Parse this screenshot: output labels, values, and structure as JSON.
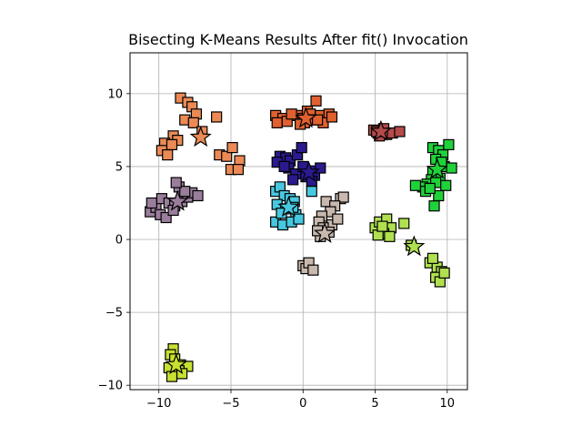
{
  "chart_data": {
    "type": "scatter",
    "title": "Bisecting K-Means Results After fit() Invocation",
    "xlabel": "",
    "ylabel": "",
    "xlim": [
      -12.0,
      11.4
    ],
    "ylim": [
      -10.3,
      12.8
    ],
    "xticks": [
      -10,
      -5,
      0,
      5,
      10
    ],
    "yticks": [
      -10,
      -5,
      0,
      5,
      10
    ],
    "xtick_labels": [
      "−10",
      "−5",
      "0",
      "5",
      "10"
    ],
    "ytick_labels": [
      "−10",
      "−5",
      "0",
      "5",
      "10"
    ],
    "grid": true,
    "legend": false,
    "marker": "square",
    "center_marker": "star",
    "clusters": [
      {
        "color": "#eb8a55",
        "center": [
          -7.1,
          7.0
        ],
        "points": [
          [
            -8.5,
            9.7
          ],
          [
            -8.0,
            9.4
          ],
          [
            -7.7,
            9.1
          ],
          [
            -7.4,
            8.6
          ],
          [
            -8.2,
            8.2
          ],
          [
            -7.6,
            8.0
          ],
          [
            -6.0,
            8.4
          ],
          [
            -9.0,
            7.1
          ],
          [
            -8.7,
            6.8
          ],
          [
            -9.6,
            6.6
          ],
          [
            -9.1,
            6.5
          ],
          [
            -9.8,
            6.1
          ],
          [
            -9.4,
            5.8
          ],
          [
            -5.8,
            5.8
          ],
          [
            -5.3,
            5.7
          ],
          [
            -4.9,
            6.3
          ],
          [
            -4.4,
            5.4
          ],
          [
            -5.0,
            4.8
          ],
          [
            -4.5,
            4.8
          ],
          [
            -7.0,
            7.4
          ]
        ]
      },
      {
        "color": "#e06030",
        "center": [
          0.2,
          8.3
        ],
        "points": [
          [
            -1.9,
            8.5
          ],
          [
            -1.4,
            8.3
          ],
          [
            -1.8,
            8.0
          ],
          [
            -1.1,
            8.1
          ],
          [
            -0.4,
            8.5
          ],
          [
            0.0,
            8.3
          ],
          [
            0.3,
            8.8
          ],
          [
            0.5,
            8.6
          ],
          [
            0.9,
            9.5
          ],
          [
            0.7,
            8.2
          ],
          [
            1.2,
            8.5
          ],
          [
            1.8,
            8.6
          ],
          [
            1.4,
            8.0
          ],
          [
            2.0,
            8.4
          ],
          [
            -0.8,
            8.6
          ],
          [
            0.1,
            8.0
          ],
          [
            1.0,
            8.2
          ],
          [
            -0.2,
            7.9
          ]
        ]
      },
      {
        "color": "#b44a4a",
        "center": [
          5.4,
          7.4
        ],
        "points": [
          [
            4.9,
            7.5
          ],
          [
            5.2,
            7.3
          ],
          [
            5.6,
            7.6
          ],
          [
            5.8,
            7.2
          ],
          [
            6.2,
            7.3
          ],
          [
            6.7,
            7.4
          ],
          [
            5.3,
            7.1
          ],
          [
            5.1,
            7.4
          ]
        ]
      },
      {
        "color": "#1fd23a",
        "center": [
          9.3,
          4.8
        ],
        "points": [
          [
            9.0,
            6.3
          ],
          [
            9.4,
            6.1
          ],
          [
            9.7,
            5.8
          ],
          [
            10.1,
            6.5
          ],
          [
            9.2,
            5.5
          ],
          [
            9.8,
            5.0
          ],
          [
            10.3,
            4.9
          ],
          [
            9.0,
            4.6
          ],
          [
            9.5,
            4.2
          ],
          [
            8.9,
            4.1
          ],
          [
            8.6,
            3.8
          ],
          [
            8.3,
            3.6
          ],
          [
            7.8,
            3.7
          ],
          [
            8.5,
            3.3
          ],
          [
            9.2,
            3.9
          ],
          [
            9.9,
            3.7
          ],
          [
            9.4,
            3.0
          ],
          [
            9.1,
            2.3
          ],
          [
            8.8,
            3.5
          ],
          [
            9.6,
            5.3
          ]
        ]
      },
      {
        "color": "#2a1a8e",
        "center": [
          0.4,
          4.6
        ],
        "points": [
          [
            -1.6,
            5.7
          ],
          [
            -1.2,
            5.6
          ],
          [
            -0.9,
            5.4
          ],
          [
            -0.4,
            5.8
          ],
          [
            -0.1,
            6.3
          ],
          [
            -1.8,
            5.3
          ],
          [
            -1.0,
            4.9
          ],
          [
            -0.5,
            4.5
          ],
          [
            0.2,
            4.3
          ],
          [
            0.5,
            4.7
          ],
          [
            0.8,
            4.4
          ],
          [
            1.2,
            4.9
          ],
          [
            0.6,
            4.0
          ],
          [
            -0.7,
            4.1
          ],
          [
            -1.3,
            5.0
          ],
          [
            0.0,
            5.0
          ]
        ]
      },
      {
        "color": "#9a7d9b",
        "center": [
          -8.7,
          2.6
        ],
        "points": [
          [
            -10.6,
            1.9
          ],
          [
            -10.2,
            2.2
          ],
          [
            -9.9,
            1.7
          ],
          [
            -9.5,
            1.5
          ],
          [
            -9.8,
            2.8
          ],
          [
            -9.3,
            2.5
          ],
          [
            -8.9,
            2.3
          ],
          [
            -8.4,
            2.6
          ],
          [
            -8.0,
            2.9
          ],
          [
            -7.7,
            3.2
          ],
          [
            -7.3,
            3.0
          ],
          [
            -8.6,
            3.6
          ],
          [
            -8.2,
            3.3
          ],
          [
            -8.8,
            3.9
          ],
          [
            -9.0,
            2.0
          ],
          [
            -10.5,
            2.5
          ]
        ]
      },
      {
        "color": "#48c8e0",
        "center": [
          -1.0,
          2.2
        ],
        "points": [
          [
            -1.9,
            3.3
          ],
          [
            -1.6,
            3.6
          ],
          [
            -1.3,
            3.0
          ],
          [
            -0.9,
            2.8
          ],
          [
            -0.6,
            2.6
          ],
          [
            -1.8,
            2.4
          ],
          [
            -1.2,
            2.1
          ],
          [
            -0.5,
            1.7
          ],
          [
            -1.9,
            1.2
          ],
          [
            -1.4,
            1.0
          ],
          [
            -0.8,
            1.2
          ],
          [
            -0.3,
            1.4
          ],
          [
            0.6,
            3.3
          ],
          [
            -1.5,
            1.8
          ],
          [
            -0.7,
            2.2
          ]
        ]
      },
      {
        "color": "#c8b8ae",
        "center": [
          1.5,
          0.4
        ],
        "points": [
          [
            2.6,
            2.8
          ],
          [
            2.8,
            2.9
          ],
          [
            1.6,
            2.6
          ],
          [
            2.2,
            2.3
          ],
          [
            1.9,
            1.9
          ],
          [
            1.3,
            1.6
          ],
          [
            1.1,
            1.2
          ],
          [
            2.0,
            1.0
          ],
          [
            1.4,
            0.8
          ],
          [
            1.8,
            0.5
          ],
          [
            1.2,
            0.2
          ],
          [
            1.0,
            0.6
          ],
          [
            0.0,
            -1.8
          ],
          [
            0.2,
            -2.0
          ],
          [
            0.4,
            -1.6
          ],
          [
            0.7,
            -2.1
          ],
          [
            2.4,
            1.4
          ]
        ]
      },
      {
        "color": "#b0e050",
        "center": [
          7.7,
          -0.5
        ],
        "points": [
          [
            5.0,
            0.8
          ],
          [
            5.3,
            1.2
          ],
          [
            5.8,
            1.4
          ],
          [
            6.1,
            0.8
          ],
          [
            5.6,
            0.4
          ],
          [
            6.0,
            0.2
          ],
          [
            5.2,
            0.3
          ],
          [
            5.5,
            0.9
          ],
          [
            7.0,
            1.1
          ],
          [
            8.8,
            -1.6
          ],
          [
            9.3,
            -1.9
          ],
          [
            9.6,
            -2.2
          ],
          [
            9.2,
            -2.6
          ],
          [
            9.5,
            -2.9
          ],
          [
            9.8,
            -2.3
          ],
          [
            9.0,
            -1.3
          ],
          [
            7.5,
            -0.4
          ]
        ]
      },
      {
        "color": "#c8e030",
        "center": [
          -8.8,
          -8.6
        ],
        "points": [
          [
            -9.0,
            -7.5
          ],
          [
            -9.2,
            -7.9
          ],
          [
            -8.9,
            -8.2
          ],
          [
            -8.5,
            -8.6
          ],
          [
            -8.0,
            -8.7
          ],
          [
            -8.6,
            -9.0
          ],
          [
            -9.3,
            -8.8
          ],
          [
            -9.1,
            -9.4
          ],
          [
            -8.4,
            -9.2
          ]
        ]
      }
    ]
  }
}
